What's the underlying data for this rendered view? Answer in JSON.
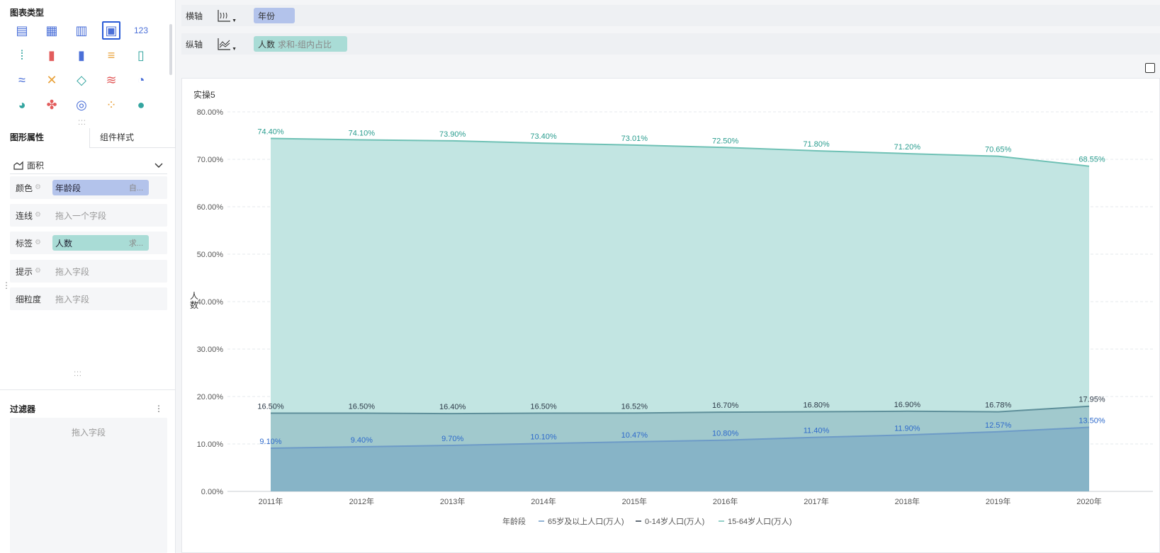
{
  "left_panel": {
    "chart_types_title": "图表类型",
    "chart_types": [
      {
        "name": "table-icon",
        "glyph": "▤"
      },
      {
        "name": "cross-table-icon",
        "glyph": "▦"
      },
      {
        "name": "detail-table-icon",
        "glyph": "▥"
      },
      {
        "name": "custom-chart-icon",
        "glyph": "▣",
        "selected": true
      },
      {
        "name": "kpi-number-icon",
        "glyph": "123"
      },
      {
        "name": "grouped-dot-icon",
        "glyph": "⁞"
      },
      {
        "name": "column-chart-icon",
        "glyph": "▮"
      },
      {
        "name": "grouped-column-icon",
        "glyph": "▮"
      },
      {
        "name": "bar-chart-icon",
        "glyph": "≡"
      },
      {
        "name": "waterfall-icon",
        "glyph": "▯"
      },
      {
        "name": "line-chart-icon",
        "glyph": "≈"
      },
      {
        "name": "multi-line-icon",
        "glyph": "✕"
      },
      {
        "name": "radar-chart-icon",
        "glyph": "◇"
      },
      {
        "name": "area-chart-icon",
        "glyph": "≋"
      },
      {
        "name": "gauge-icon",
        "glyph": "◔"
      },
      {
        "name": "pie-chart-icon",
        "glyph": "◕"
      },
      {
        "name": "rose-chart-icon",
        "glyph": "✤"
      },
      {
        "name": "donut-chart-icon",
        "glyph": "◎"
      },
      {
        "name": "scatter-chart-icon",
        "glyph": "⁘"
      },
      {
        "name": "bubble-chart-icon",
        "glyph": "●"
      }
    ],
    "tabs": {
      "active": "图形属性",
      "inactive": "组件样式"
    },
    "mark_type": "面积",
    "props": [
      {
        "name": "color-row",
        "label": "颜色",
        "pill": "年龄段",
        "pill_sub": "自...",
        "pill_color": "blue"
      },
      {
        "name": "line-row",
        "label": "连线",
        "placeholder": "拖入一个字段"
      },
      {
        "name": "label-row",
        "label": "标签",
        "pill": "人数",
        "pill_sub": "求...",
        "pill_color": "green"
      },
      {
        "name": "tooltip-row",
        "label": "提示",
        "placeholder": "拖入字段"
      },
      {
        "name": "granularity-row",
        "label": "细粒度",
        "placeholder": "拖入字段"
      }
    ],
    "filter": {
      "title": "过滤器",
      "menu": "⋮",
      "placeholder": "拖入字段"
    }
  },
  "shelves": {
    "x_axis": {
      "label": "横轴",
      "field": "年份"
    },
    "y_axis": {
      "label": "纵轴",
      "field": "人数",
      "field_sub": "求和-组内占比"
    }
  },
  "chart_title": "实操5",
  "colors": {
    "series_6514": "#6fc1b5",
    "series_6514_fill": "#c2e5e2",
    "series_014": "#5e8f9a",
    "series_014_fill": "#9bc4c9",
    "series_65": "#6d9bc7",
    "series_65_fill": "#83b0c5",
    "label_6514": "#2a9d8f",
    "label_014": "#2f3c4a",
    "label_65": "#2e6acb",
    "pill_blue": "#b3c3eb",
    "pill_green": "#a9dcd6"
  },
  "chart_data": {
    "type": "area",
    "categories": [
      "2011年",
      "2012年",
      "2013年",
      "2014年",
      "2015年",
      "2016年",
      "2017年",
      "2018年",
      "2019年",
      "2020年"
    ],
    "ylabel": "人数",
    "ylim": [
      0,
      80
    ],
    "y_ticks": [
      "0.00%",
      "10.00%",
      "20.00%",
      "30.00%",
      "40.00%",
      "50.00%",
      "60.00%",
      "70.00%",
      "80.00%"
    ],
    "grid": true,
    "legend": {
      "title": "年龄段",
      "position": "bottom"
    },
    "series": [
      {
        "name": "65岁及以上人口(万人)",
        "key": "s65",
        "values": [
          9.1,
          9.4,
          9.7,
          10.1,
          10.47,
          10.8,
          11.4,
          11.9,
          12.57,
          13.5
        ],
        "labels": [
          "9.10%",
          "9.40%",
          "9.70%",
          "10.10%",
          "10.47%",
          "10.80%",
          "11.40%",
          "11.90%",
          "12.57%",
          "13.50%"
        ]
      },
      {
        "name": "0-14岁人口(万人)",
        "key": "s014",
        "values": [
          16.5,
          16.5,
          16.4,
          16.5,
          16.52,
          16.7,
          16.8,
          16.9,
          16.78,
          17.95
        ],
        "labels": [
          "16.50%",
          "16.50%",
          "16.40%",
          "16.50%",
          "16.52%",
          "16.70%",
          "16.80%",
          "16.90%",
          "16.78%",
          "17.95%"
        ]
      },
      {
        "name": "15-64岁人口(万人)",
        "key": "s6514",
        "values": [
          74.4,
          74.1,
          73.9,
          73.4,
          73.01,
          72.5,
          71.8,
          71.2,
          70.65,
          68.55
        ],
        "labels": [
          "74.40%",
          "74.10%",
          "73.90%",
          "73.40%",
          "73.01%",
          "72.50%",
          "71.80%",
          "71.20%",
          "70.65%",
          "68.55%"
        ]
      }
    ]
  }
}
